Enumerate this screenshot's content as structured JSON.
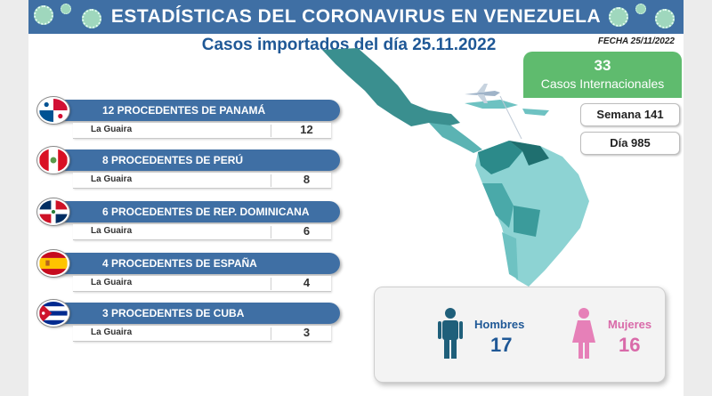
{
  "header": {
    "title": "ESTADÍSTICAS DEL CORONAVIRUS EN VENEZUELA",
    "subtitle": "Casos importados del día 25.11.2022",
    "date": "FECHA 25/11/2022"
  },
  "international": {
    "count": "33",
    "label": "Casos Internacionales"
  },
  "week": "Semana 141",
  "day": "Día 985",
  "countries": [
    {
      "label": "12 PROCEDENTES DE PANAMÁ",
      "location": "La Guaira",
      "count": "12",
      "flag": "panama-flag-icon"
    },
    {
      "label": "8 PROCEDENTES DE PERÚ",
      "location": "La Guaira",
      "count": "8",
      "flag": "peru-flag-icon"
    },
    {
      "label": "6 PROCEDENTES DE REP. DOMINICANA",
      "location": "La Guaira",
      "count": "6",
      "flag": "dominican-republic-flag-icon"
    },
    {
      "label": "4 PROCEDENTES DE ESPAÑA",
      "location": "La Guaira",
      "count": "4",
      "flag": "spain-flag-icon"
    },
    {
      "label": "3 PROCEDENTES DE CUBA",
      "location": "La Guaira",
      "count": "3",
      "flag": "cuba-flag-icon"
    }
  ],
  "gender": {
    "men_label": "Hombres",
    "men_count": "17",
    "women_label": "Mujeres",
    "women_count": "16"
  },
  "colors": {
    "header_blue": "#3f6fa4",
    "title_blue": "#1f5896",
    "green": "#5fbb6e",
    "teal_map": "#3aa6a6",
    "men_icon": "#1f5f7a",
    "women_icon": "#e680b8"
  }
}
